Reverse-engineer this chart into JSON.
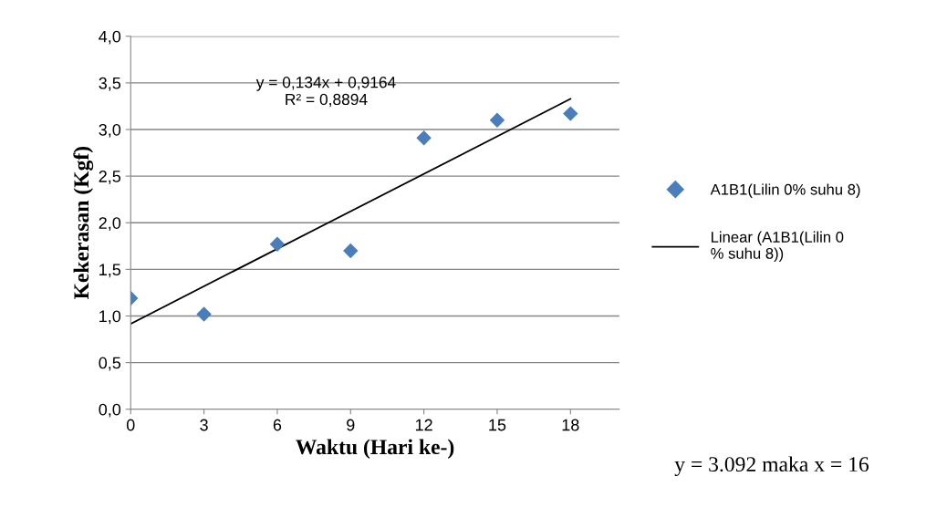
{
  "chart_data": {
    "type": "scatter",
    "xlabel": "Waktu (Hari ke-)",
    "ylabel": "Kekerasan (Kgf)",
    "x": [
      0,
      3,
      6,
      9,
      12,
      15,
      18
    ],
    "series": [
      {
        "name": "A1B1(Lilin 0% suhu 8)",
        "color": "#4a7ebb",
        "marker": "diamond",
        "values": [
          1.19,
          1.02,
          1.77,
          1.7,
          2.91,
          3.1,
          3.17
        ]
      },
      {
        "name": "Linear (A1B1(Lilin 0% suhu 8))",
        "type": "line",
        "color": "#000000",
        "marker": "none",
        "line_style": "solid",
        "x": [
          0,
          18
        ],
        "values": [
          0.9164,
          3.3284
        ]
      }
    ],
    "xlim": [
      0,
      20
    ],
    "xticks": [
      0,
      3,
      6,
      9,
      12,
      15,
      18
    ],
    "ylim": [
      0,
      4
    ],
    "yticks": [
      {
        "value": 0,
        "label": "0,0"
      },
      {
        "value": 0.5,
        "label": "0,5"
      },
      {
        "value": 1,
        "label": "1,0"
      },
      {
        "value": 1.5,
        "label": "1,5"
      },
      {
        "value": 2,
        "label": "2,0"
      },
      {
        "value": 2.5,
        "label": "2,5"
      },
      {
        "value": 3,
        "label": "3,0"
      },
      {
        "value": 3.5,
        "label": "3,5"
      },
      {
        "value": 4,
        "label": "4,0"
      }
    ],
    "grid": "y",
    "legend": "right",
    "annotations": [
      "y = 0,134x + 0,9164\nR² = 0,8894",
      "y = 3.092 maka x = 16"
    ]
  }
}
